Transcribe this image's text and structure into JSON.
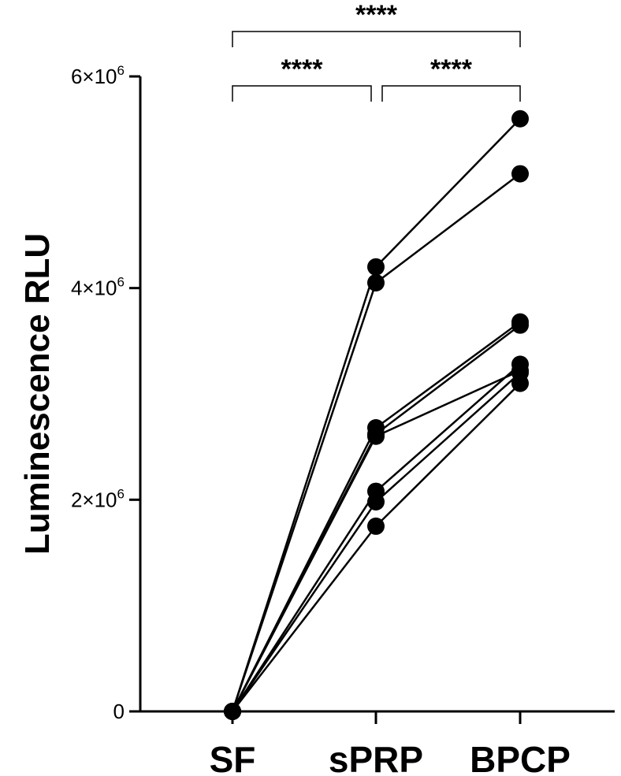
{
  "chart_data": {
    "type": "line",
    "categories": [
      "SF",
      "sPRP",
      "BPCP"
    ],
    "ylabel": "Luminescence RLU",
    "ylim": [
      0,
      6000000
    ],
    "yticks": [
      {
        "value": 0,
        "base": "0",
        "exp": ""
      },
      {
        "value": 2000000,
        "base": "2×10",
        "exp": "6"
      },
      {
        "value": 4000000,
        "base": "4×10",
        "exp": "6"
      },
      {
        "value": 6000000,
        "base": "6×10",
        "exp": "6"
      }
    ],
    "series": [
      {
        "values": [
          0,
          4200000,
          5600000
        ]
      },
      {
        "values": [
          0,
          4050000,
          5080000
        ]
      },
      {
        "values": [
          0,
          2680000,
          3680000
        ]
      },
      {
        "values": [
          0,
          2620000,
          3650000
        ]
      },
      {
        "values": [
          0,
          2600000,
          3220000
        ]
      },
      {
        "values": [
          0,
          2080000,
          3280000
        ]
      },
      {
        "values": [
          0,
          1980000,
          3200000
        ]
      },
      {
        "values": [
          0,
          1750000,
          3100000
        ]
      }
    ],
    "significance": [
      {
        "from": 0,
        "to": 2,
        "label": "****"
      },
      {
        "from": 0,
        "to": 1,
        "label": "****"
      },
      {
        "from": 1,
        "to": 2,
        "label": "****"
      }
    ],
    "grid": false,
    "marker_color": "#000000",
    "line_color": "#000000"
  }
}
